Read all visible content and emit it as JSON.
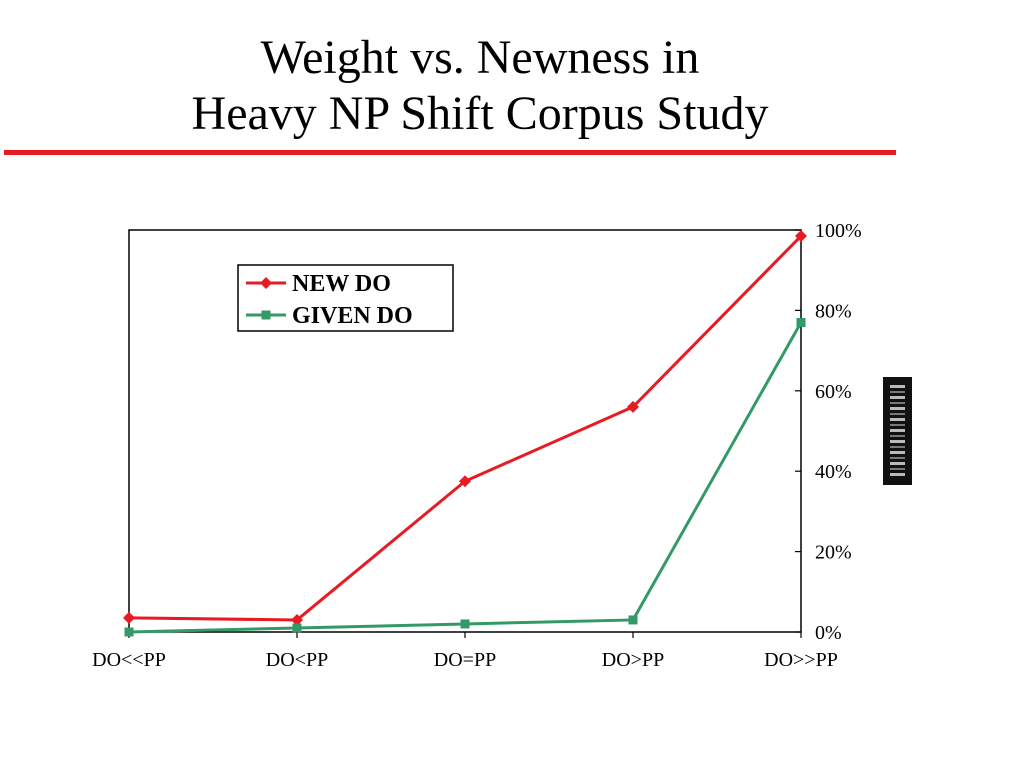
{
  "slide": {
    "title_line1": "Weight vs. Newness in",
    "title_line2": "Heavy NP Shift Corpus Study"
  },
  "chart_data": {
    "type": "line",
    "categories": [
      "DO<<PP",
      "DO<PP",
      "DO=PP",
      "DO>PP",
      "DO>>PP"
    ],
    "y_tick_labels": [
      "0%",
      "20%",
      "40%",
      "60%",
      "80%",
      "100%"
    ],
    "ylim": [
      0,
      100
    ],
    "y_axis_side": "right",
    "grid": false,
    "legend_position": "top-left",
    "series": [
      {
        "name": "NEW DO",
        "color": "#e81b23",
        "marker": "diamond",
        "values": [
          3.5,
          3,
          37.5,
          56,
          98.5
        ]
      },
      {
        "name": "GIVEN DO",
        "color": "#339966",
        "marker": "square",
        "values": [
          0,
          1,
          2,
          3,
          77
        ]
      }
    ]
  }
}
